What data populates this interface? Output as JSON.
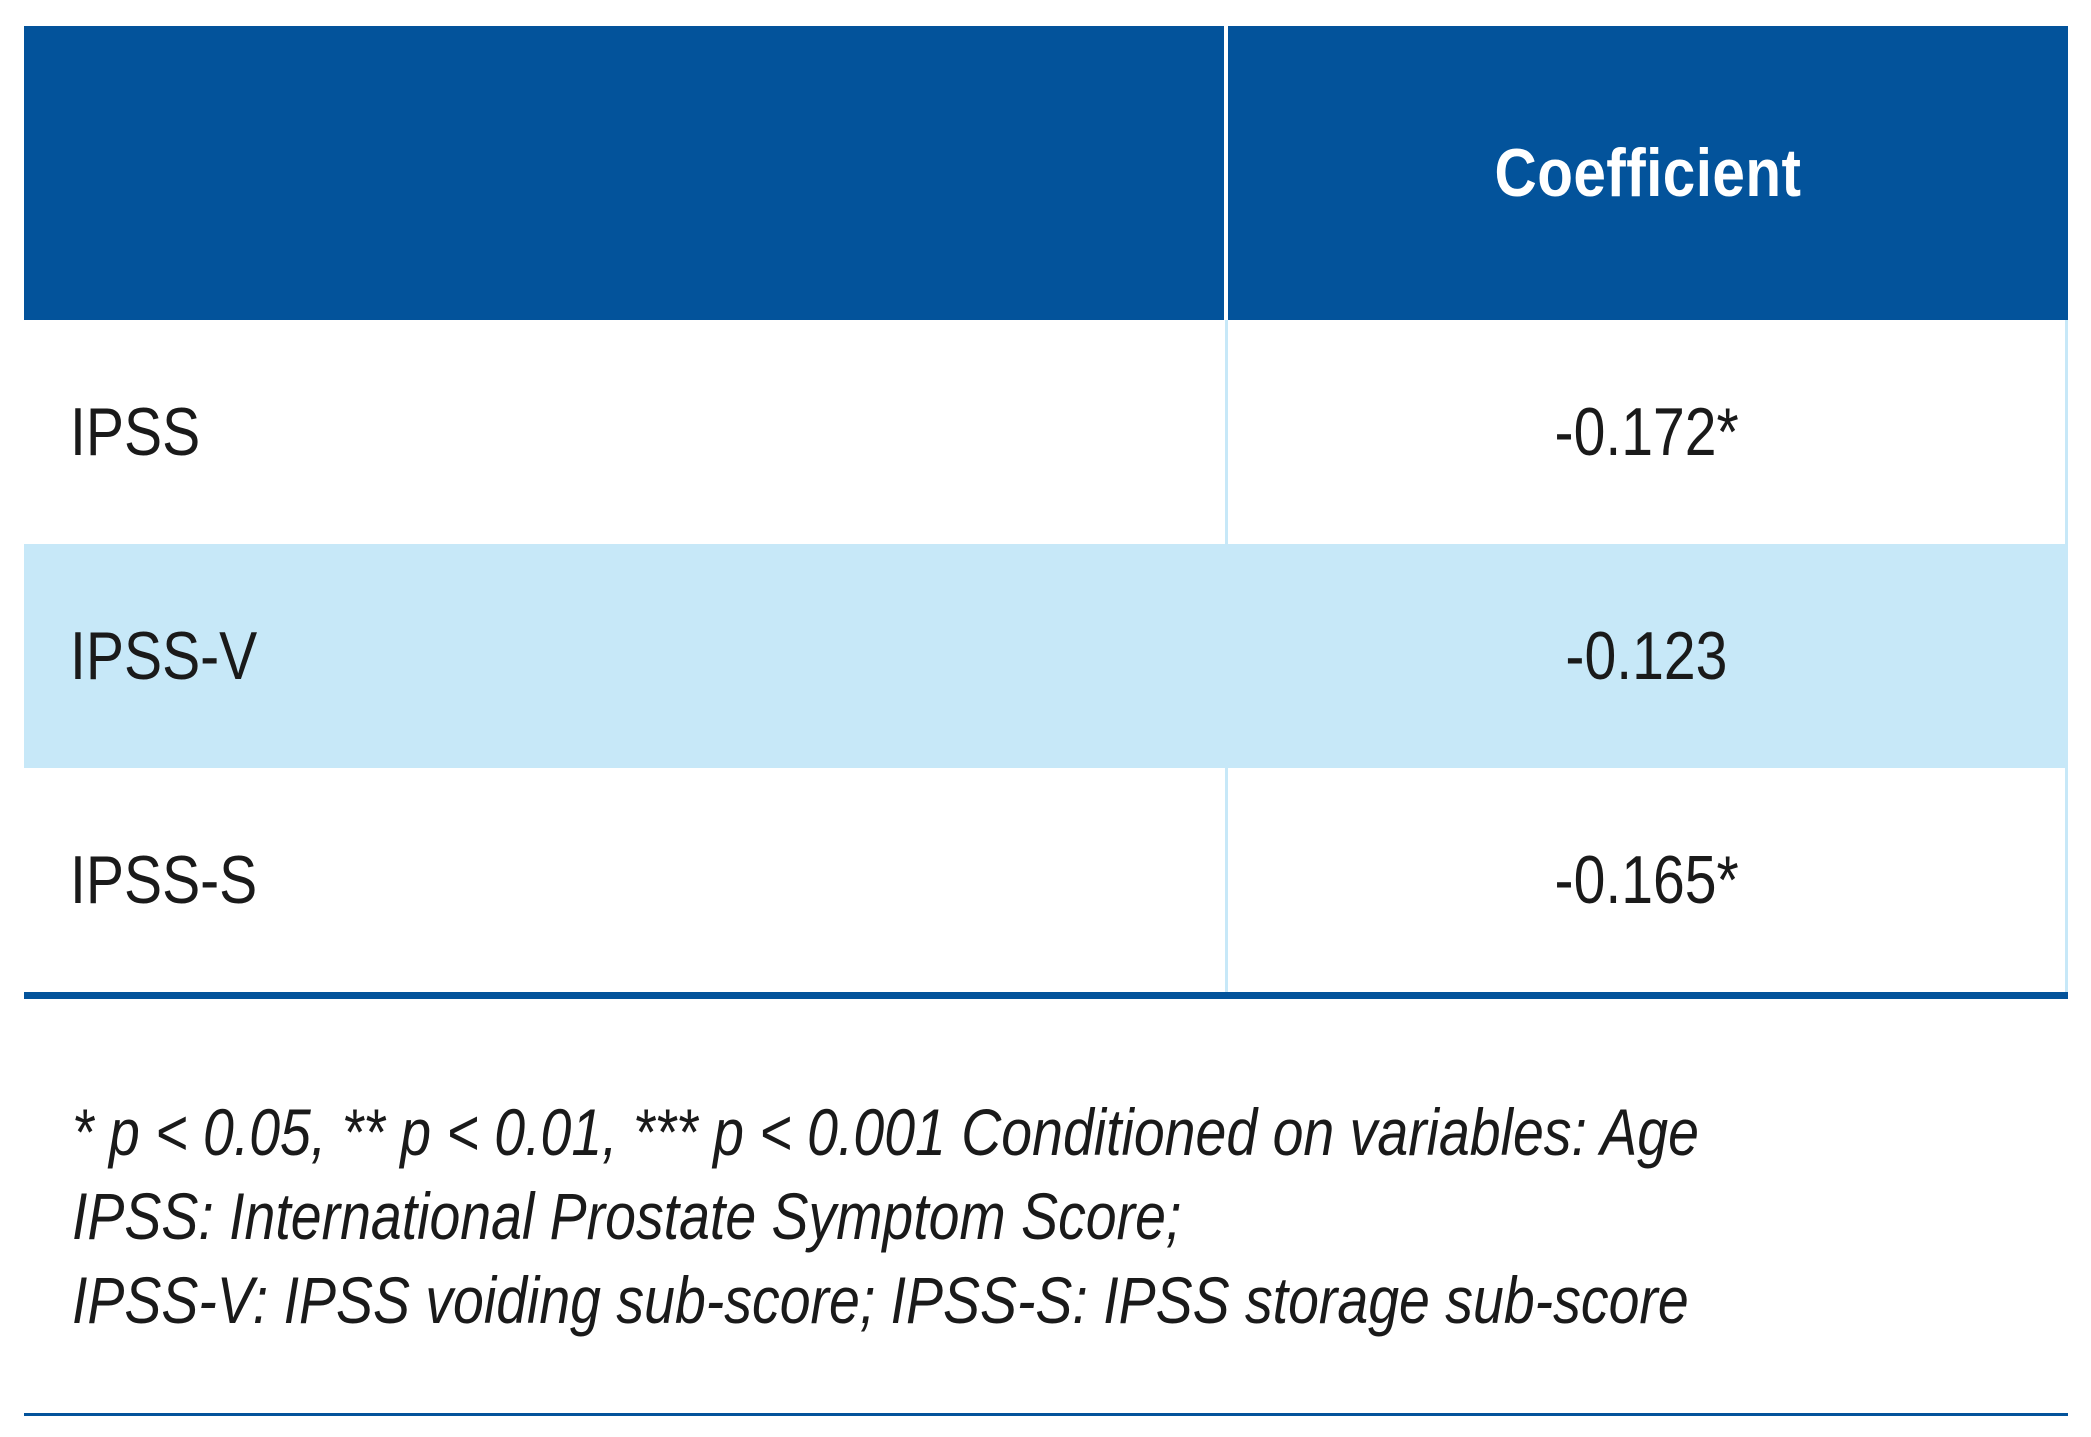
{
  "table": {
    "header": {
      "left": "",
      "right": "Coefficient"
    },
    "rows": [
      {
        "label": "IPSS",
        "value": "-0.172*"
      },
      {
        "label": "IPSS-V",
        "value": "-0.123"
      },
      {
        "label": "IPSS-S",
        "value": "-0.165*"
      }
    ]
  },
  "footnote": {
    "line1": "* p < 0.05, ** p < 0.01, *** p < 0.001 Conditioned on variables: Age",
    "line2": "IPSS: International Prostate Symptom Score;",
    "line3": "IPSS-V: IPSS voiding sub-score; IPSS-S: IPSS storage sub-score"
  },
  "colors": {
    "header_bg": "#03539b",
    "shaded_row": "#c7e8f8",
    "rule": "#03539b"
  }
}
